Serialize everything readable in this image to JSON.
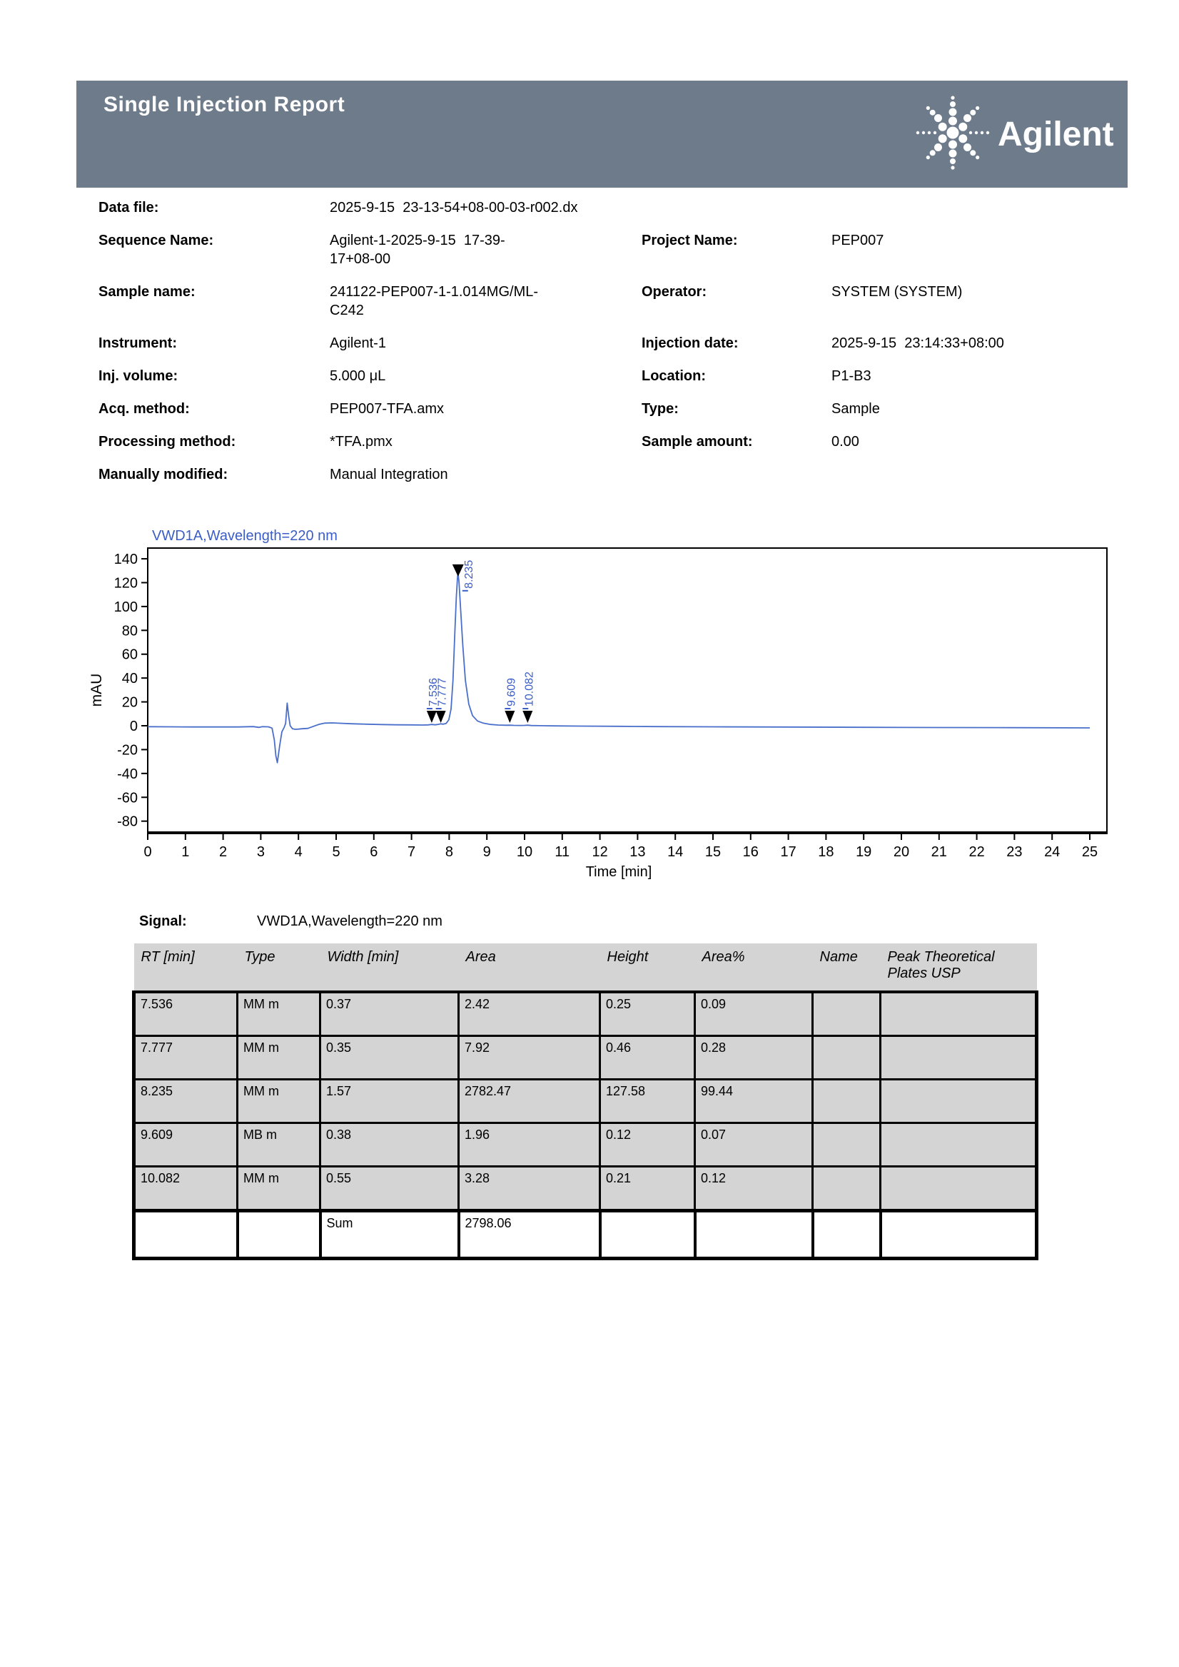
{
  "header": {
    "title": "Single Injection Report",
    "brand": "Agilent",
    "band_color": "#6d7b8b"
  },
  "metadata": {
    "fields": [
      {
        "label": "Data file:",
        "value": "2025-9-15  23-13-54+08-00-03-r002.dx",
        "label2": "",
        "value2": ""
      },
      {
        "label": "Sequence Name:",
        "value": "Agilent-1-2025-9-15  17-39-\n17+08-00",
        "label2": "Project Name:",
        "value2": "PEP007"
      },
      {
        "label": "Sample name:",
        "value": "241122-PEP007-1-1.014MG/ML-\nC242",
        "label2": "Operator:",
        "value2": "SYSTEM (SYSTEM)"
      },
      {
        "label": "Instrument:",
        "value": "Agilent-1",
        "label2": "Injection date:",
        "value2": "2025-9-15  23:14:33+08:00"
      },
      {
        "label": "Inj. volume:",
        "value": "5.000 μL",
        "label2": "Location:",
        "value2": "P1-B3"
      },
      {
        "label": "Acq. method:",
        "value": "PEP007-TFA.amx",
        "label2": "Type:",
        "value2": "Sample"
      },
      {
        "label": "Processing method:",
        "value": "*TFA.pmx",
        "label2": "Sample amount:",
        "value2": "0.00"
      },
      {
        "label": "Manually modified:",
        "value": "Manual Integration",
        "label2": "",
        "value2": ""
      }
    ]
  },
  "chart_data": {
    "type": "line",
    "title": "VWD1A,Wavelength=220 nm",
    "xlabel": "Time [min]",
    "ylabel": "mAU",
    "xlim": [
      0,
      25
    ],
    "ylim": [
      -90,
      149
    ],
    "x_ticks": [
      0,
      1,
      2,
      3,
      4,
      5,
      6,
      7,
      8,
      9,
      10,
      11,
      12,
      13,
      14,
      15,
      16,
      17,
      18,
      19,
      20,
      21,
      22,
      23,
      24,
      25
    ],
    "y_ticks": [
      140,
      120,
      100,
      80,
      60,
      40,
      20,
      0,
      -20,
      -40,
      -60,
      -80
    ],
    "line_color": "#4a6fcb",
    "annotation_color": "#3b5ec6",
    "title_color": "#3b5ec6",
    "peaks": [
      {
        "label": "7.536",
        "time": 7.536,
        "marker": "baseline"
      },
      {
        "label": "7.777",
        "time": 7.777,
        "marker": "baseline"
      },
      {
        "label": "8.235",
        "time": 8.235,
        "marker": "apex",
        "apex_mau": 127.58
      },
      {
        "label": "9.609",
        "time": 9.609,
        "marker": "baseline"
      },
      {
        "label": "10.082",
        "time": 10.082,
        "marker": "baseline"
      }
    ],
    "trace": [
      [
        0,
        -0.8
      ],
      [
        0.6,
        -0.9
      ],
      [
        1.2,
        -1.0
      ],
      [
        1.8,
        -1.0
      ],
      [
        2.4,
        -1.0
      ],
      [
        2.8,
        -0.7
      ],
      [
        2.95,
        -1.4
      ],
      [
        3.05,
        -0.8
      ],
      [
        3.2,
        -0.9
      ],
      [
        3.3,
        -2.0
      ],
      [
        3.36,
        -12
      ],
      [
        3.4,
        -25
      ],
      [
        3.44,
        -31
      ],
      [
        3.5,
        -17
      ],
      [
        3.56,
        -5
      ],
      [
        3.62,
        -1.5
      ],
      [
        3.66,
        2
      ],
      [
        3.7,
        19
      ],
      [
        3.74,
        8
      ],
      [
        3.78,
        0
      ],
      [
        3.84,
        -2.5
      ],
      [
        3.92,
        -3
      ],
      [
        4.0,
        -2.8
      ],
      [
        4.1,
        -2.5
      ],
      [
        4.25,
        -2.2
      ],
      [
        4.4,
        -0.5
      ],
      [
        4.55,
        1.2
      ],
      [
        4.7,
        2.2
      ],
      [
        4.9,
        2.4
      ],
      [
        5.1,
        2.1
      ],
      [
        5.4,
        1.7
      ],
      [
        5.8,
        1.3
      ],
      [
        6.2,
        1.0
      ],
      [
        6.6,
        0.8
      ],
      [
        7.0,
        0.7
      ],
      [
        7.3,
        0.6
      ],
      [
        7.44,
        0.7
      ],
      [
        7.536,
        1.1
      ],
      [
        7.63,
        0.8
      ],
      [
        7.72,
        1.2
      ],
      [
        7.777,
        1.6
      ],
      [
        7.84,
        1.3
      ],
      [
        7.92,
        2
      ],
      [
        7.99,
        5
      ],
      [
        8.05,
        14
      ],
      [
        8.1,
        38
      ],
      [
        8.15,
        78
      ],
      [
        8.19,
        108
      ],
      [
        8.22,
        124
      ],
      [
        8.235,
        127.58
      ],
      [
        8.26,
        121
      ],
      [
        8.3,
        100
      ],
      [
        8.36,
        68
      ],
      [
        8.43,
        38
      ],
      [
        8.52,
        18
      ],
      [
        8.62,
        8.5
      ],
      [
        8.75,
        4
      ],
      [
        8.9,
        2.2
      ],
      [
        9.1,
        1.1
      ],
      [
        9.3,
        0.6
      ],
      [
        9.5,
        0.4
      ],
      [
        9.609,
        0.5
      ],
      [
        9.72,
        0.3
      ],
      [
        9.9,
        0.25
      ],
      [
        10.0,
        0.3
      ],
      [
        10.082,
        0.45
      ],
      [
        10.18,
        0.15
      ],
      [
        10.4,
        0.05
      ],
      [
        10.8,
        -0.1
      ],
      [
        11.5,
        -0.3
      ],
      [
        12.5,
        -0.5
      ],
      [
        13.5,
        -0.7
      ],
      [
        15,
        -0.9
      ],
      [
        17,
        -1.1
      ],
      [
        19,
        -1.3
      ],
      [
        21,
        -1.5
      ],
      [
        23,
        -1.6
      ],
      [
        25,
        -1.8
      ]
    ]
  },
  "signal": {
    "label": "Signal:",
    "value": "VWD1A,Wavelength=220 nm"
  },
  "peak_table": {
    "columns": [
      "RT [min]",
      "Type",
      "Width [min]",
      "Area",
      "Height",
      "Area%",
      "Name",
      "Peak Theoretical Plates USP"
    ],
    "rows": [
      [
        "7.536",
        "MM m",
        "0.37",
        "2.42",
        "0.25",
        "0.09",
        "",
        ""
      ],
      [
        "7.777",
        "MM m",
        "0.35",
        "7.92",
        "0.46",
        "0.28",
        "",
        ""
      ],
      [
        "8.235",
        "MM m",
        "1.57",
        "2782.47",
        "127.58",
        "99.44",
        "",
        ""
      ],
      [
        "9.609",
        "MB m",
        "0.38",
        "1.96",
        "0.12",
        "0.07",
        "",
        ""
      ],
      [
        "10.082",
        "MM m",
        "0.55",
        "3.28",
        "0.21",
        "0.12",
        "",
        ""
      ]
    ],
    "sum": {
      "label": "Sum",
      "area": "2798.06"
    }
  }
}
